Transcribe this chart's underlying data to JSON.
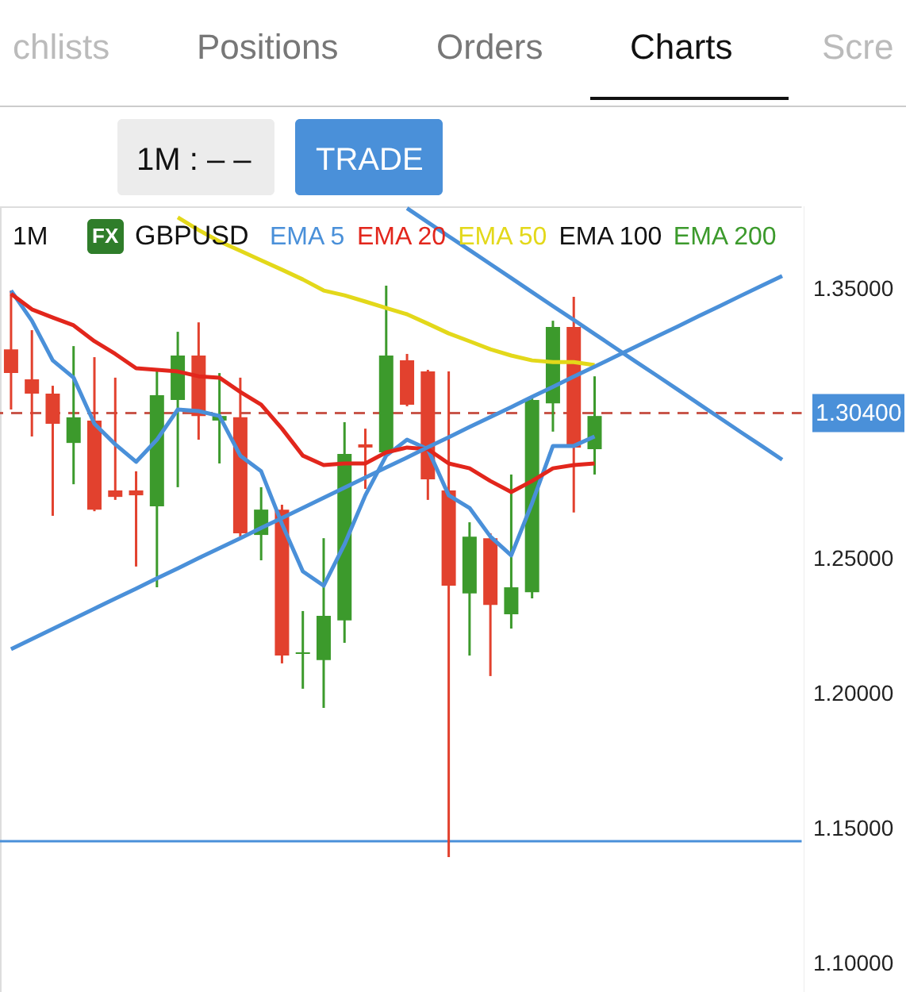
{
  "chart_data": {
    "type": "candlestick",
    "title": "GBPUSD",
    "annotations": [
      "chlists",
      "Positions",
      "Orders",
      "Charts",
      "Scre",
      "1M : – –",
      "TRADE",
      "1M",
      "FX"
    ],
    "categories": [
      null,
      null,
      null,
      null,
      null,
      null,
      null,
      null,
      null,
      null,
      null,
      null,
      null,
      null,
      null,
      null,
      null,
      null,
      null,
      null,
      null,
      null,
      null,
      null,
      null,
      null,
      null,
      null,
      null,
      null,
      null,
      null,
      null,
      null,
      null,
      null,
      null,
      null
    ],
    "ohlc": [
      [
        1.3276,
        1.3494,
        1.3053,
        1.3188
      ],
      [
        1.3165,
        1.3347,
        1.2953,
        1.3112
      ],
      [
        1.3112,
        1.3141,
        1.2659,
        1.3
      ],
      [
        1.2929,
        1.3288,
        1.2776,
        1.3024
      ],
      [
        1.3012,
        1.3247,
        1.2676,
        1.2682
      ],
      [
        1.2753,
        1.3171,
        1.2718,
        1.2729
      ],
      [
        1.2753,
        1.2824,
        1.2471,
        1.2735
      ],
      [
        1.2694,
        1.32,
        1.2394,
        1.3106
      ],
      [
        1.3088,
        1.3341,
        1.2765,
        1.3253
      ],
      [
        1.3253,
        1.3376,
        1.2941,
        1.3029
      ],
      [
        1.3012,
        1.3188,
        1.2853,
        1.3029
      ],
      [
        1.3024,
        1.3171,
        1.2582,
        1.2594
      ],
      [
        1.2588,
        1.2765,
        1.2494,
        1.2682
      ],
      [
        1.2682,
        1.27,
        1.2112,
        1.2141
      ],
      [
        1.2147,
        1.2306,
        1.2018,
        1.2153
      ],
      [
        1.2124,
        1.2576,
        1.1947,
        1.2288
      ],
      [
        1.2271,
        1.3006,
        1.2188,
        1.2888
      ],
      [
        1.2924,
        1.2982,
        1.2759,
        1.2912
      ],
      [
        1.2894,
        1.3512,
        1.2888,
        1.3253
      ],
      [
        1.3235,
        1.3259,
        1.3065,
        1.3071
      ],
      [
        1.3194,
        1.32,
        1.2718,
        1.2794
      ],
      [
        1.2753,
        1.3194,
        1.1394,
        1.24
      ],
      [
        1.2371,
        1.2635,
        1.2141,
        1.2582
      ],
      [
        1.2576,
        1.2594,
        1.2065,
        1.2329
      ],
      [
        1.2294,
        1.2812,
        1.2241,
        1.2394
      ],
      [
        1.2376,
        1.3094,
        1.2353,
        1.3088
      ],
      [
        1.3076,
        1.3382,
        1.2971,
        1.3359
      ],
      [
        1.3359,
        1.3471,
        1.2671,
        1.2912
      ],
      [
        1.2906,
        1.3176,
        1.2812,
        1.3029
      ],
      null,
      null,
      null,
      null,
      null,
      null,
      null,
      null,
      null
    ],
    "colors": [
      "#e2412e",
      "#e2412e",
      "#e2412e",
      "#3c9a2c",
      "#e2412e",
      "#e2412e",
      "#e2412e",
      "#3c9a2c",
      "#3c9a2c",
      "#e2412e",
      "#3c9a2c",
      "#e2412e",
      "#3c9a2c",
      "#e2412e",
      "#3c9a2c",
      "#3c9a2c",
      "#3c9a2c",
      "#e2412e",
      "#3c9a2c",
      "#e2412e",
      "#e2412e",
      "#e2412e",
      "#3c9a2c",
      "#e2412e",
      "#3c9a2c",
      "#3c9a2c",
      "#3c9a2c",
      "#e2412e",
      "#3c9a2c",
      null,
      null,
      null,
      null,
      null,
      null,
      null,
      null,
      null
    ],
    "series": [
      {
        "type": "line",
        "name": "EMA 5",
        "color": "#4a90d9",
        "values": [
          1.3494,
          1.3382,
          1.3235,
          1.3171,
          1.3,
          1.2924,
          1.2859,
          1.2941,
          1.3053,
          1.3047,
          1.3029,
          1.2882,
          1.2824,
          1.2629,
          1.2453,
          1.24,
          1.2553,
          1.2735,
          1.2882,
          1.2941,
          1.2906,
          1.2735,
          1.2688,
          1.2582,
          1.2512,
          1.2706,
          1.2918,
          1.2918,
          1.2953,
          null,
          null,
          null,
          null,
          null,
          null,
          null,
          null,
          null
        ]
      },
      {
        "type": "line",
        "name": "EMA 20",
        "color": "#e2261c",
        "values": [
          1.3482,
          1.3424,
          1.3394,
          1.3365,
          1.3306,
          1.3259,
          1.3206,
          1.32,
          1.3194,
          1.3176,
          1.3171,
          1.3118,
          1.3071,
          1.2982,
          1.2882,
          1.2847,
          1.2853,
          1.2853,
          1.2894,
          1.2912,
          1.2906,
          1.2853,
          1.2835,
          1.2788,
          1.2747,
          1.2788,
          1.2835,
          1.2847,
          1.2853,
          null,
          null,
          null,
          null,
          null,
          null,
          null,
          null,
          null
        ]
      },
      {
        "type": "line",
        "name": "EMA 50",
        "color": "#e3d81a",
        "values": [
          null,
          null,
          null,
          null,
          null,
          null,
          null,
          null,
          1.3765,
          1.3718,
          1.3676,
          1.3641,
          1.3606,
          1.3571,
          1.3535,
          1.3494,
          1.3476,
          1.3453,
          1.3429,
          1.3406,
          1.3371,
          1.3335,
          1.3306,
          1.3276,
          1.3253,
          1.3235,
          1.3229,
          1.3229,
          1.3218,
          null,
          null,
          null,
          null,
          null,
          null,
          null,
          null,
          null
        ]
      },
      {
        "type": "line",
        "name": "EMA 100",
        "color": "#111111",
        "values": [
          null,
          null,
          null,
          null,
          null,
          null,
          null,
          null,
          null,
          null,
          null,
          null,
          null,
          null,
          null,
          null,
          null,
          null,
          null,
          null,
          null,
          null,
          null,
          null,
          null,
          null,
          null,
          null,
          null,
          null,
          null,
          null,
          null,
          null,
          null,
          null,
          null,
          null
        ]
      },
      {
        "type": "line",
        "name": "EMA 200",
        "color": "#3c9a2c",
        "values": [
          null,
          null,
          null,
          null,
          null,
          null,
          null,
          null,
          null,
          null,
          null,
          null,
          null,
          null,
          null,
          null,
          null,
          null,
          null,
          null,
          null,
          null,
          null,
          null,
          null,
          null,
          null,
          null,
          null,
          null,
          null,
          null,
          null,
          null,
          null,
          null,
          null,
          null
        ]
      },
      {
        "type": "line",
        "color": "#4a90d9",
        "values": [
          1.2165,
          1.2202,
          1.224,
          1.2277,
          1.2315,
          1.2352,
          1.2389,
          1.2427,
          1.2464,
          1.2502,
          1.2539,
          1.2576,
          1.2614,
          1.2651,
          1.2688,
          1.2726,
          1.2763,
          1.2801,
          1.2838,
          1.2875,
          1.2913,
          1.295,
          1.2988,
          1.3025,
          1.3062,
          1.31,
          1.3137,
          1.3175,
          1.3212,
          1.3249,
          1.3287,
          1.3324,
          1.3361,
          1.3399,
          1.3436,
          1.3474,
          1.3511,
          1.3548
        ]
      },
      {
        "type": "line",
        "color": "#4a90d9",
        "values": [
          null,
          null,
          null,
          null,
          null,
          null,
          null,
          null,
          null,
          null,
          null,
          null,
          null,
          null,
          null,
          null,
          null,
          null,
          null,
          1.3799,
          1.3747,
          1.3695,
          1.3644,
          1.3592,
          1.354,
          1.3488,
          1.3436,
          1.3385,
          1.3333,
          1.3281,
          1.3229,
          1.3178,
          1.3126,
          1.3074,
          1.3022,
          1.297,
          1.2919,
          1.2867
        ]
      }
    ],
    "ref_lines": [
      {
        "axis": "y",
        "value": 1.304,
        "label": "1.30400",
        "color": "#c8564a",
        "line_style": "dashed"
      },
      {
        "axis": "y",
        "value": 1.1453,
        "color": "#4a90d9",
        "line_style": "solid"
      }
    ],
    "ylim": [
      1.0894,
      1.3806
    ],
    "yticks": [
      {
        "value": 1.1,
        "label": "1.10000"
      },
      {
        "value": 1.15,
        "label": "1.15000"
      },
      {
        "value": 1.2,
        "label": "1.20000"
      },
      {
        "value": 1.25,
        "label": "1.25000"
      },
      {
        "value": 1.35,
        "label": "1.35000"
      }
    ],
    "tick_labels": "y",
    "grid": false,
    "legend": "top"
  }
}
